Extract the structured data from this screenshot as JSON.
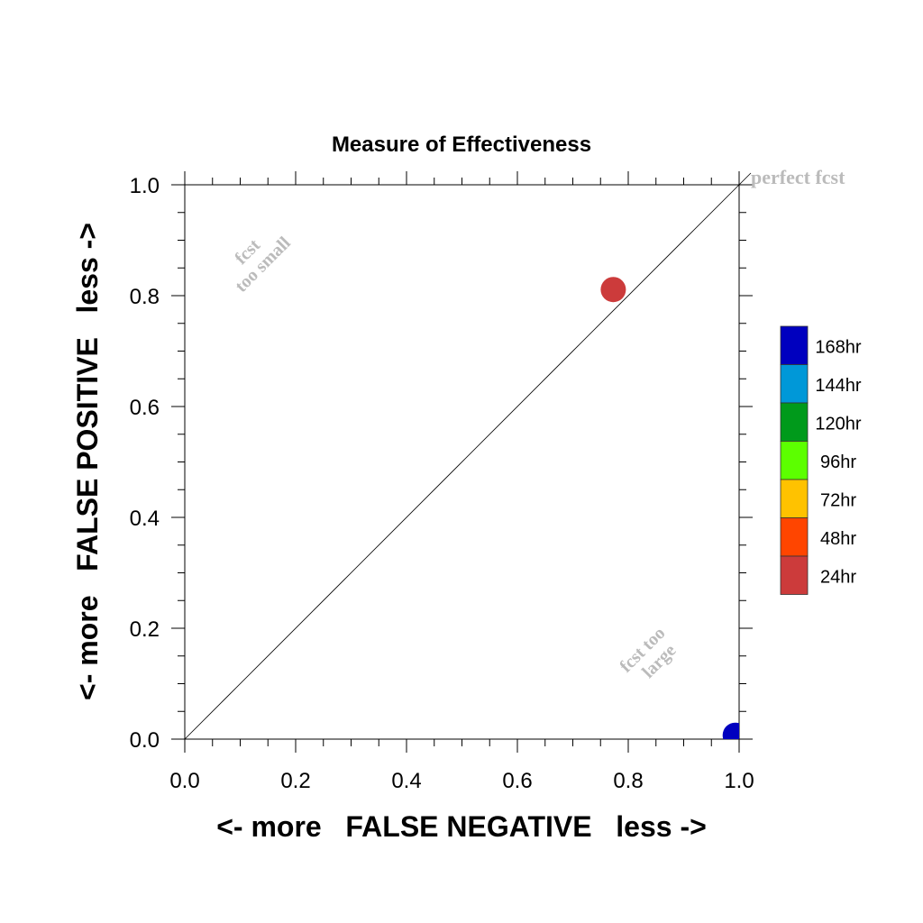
{
  "chart_data": {
    "type": "scatter",
    "title": "Measure of Effectiveness",
    "xlabel": "<- more   FALSE NEGATIVE   less ->",
    "ylabel": "<- more   FALSE POSITIVE   less ->",
    "xlim": [
      0.0,
      1.0
    ],
    "ylim": [
      0.0,
      1.0
    ],
    "x_ticks": [
      "0.0",
      "0.2",
      "0.4",
      "0.6",
      "0.8",
      "1.0"
    ],
    "y_ticks": [
      "0.0",
      "0.2",
      "0.4",
      "0.6",
      "0.8",
      "1.0"
    ],
    "grid": false,
    "diagonal_line": true,
    "annotations": {
      "perfect": "perfect fcst",
      "too_small_line1": "fcst",
      "too_small_line2": "too small",
      "too_large_line1": "fcst too",
      "too_large_line2": "large"
    },
    "legend": [
      {
        "label": "168hr",
        "color": "#0000bf"
      },
      {
        "label": "144hr",
        "color": "#0098d8"
      },
      {
        "label": "120hr",
        "color": "#009a1b"
      },
      {
        "label": "96hr",
        "color": "#5cff00"
      },
      {
        "label": "72hr",
        "color": "#ffc200"
      },
      {
        "label": "48hr",
        "color": "#ff4500"
      },
      {
        "label": "24hr",
        "color": "#cc3b3b"
      }
    ],
    "series": [
      {
        "name": "24hr",
        "color": "#cc3b3b",
        "points": [
          {
            "x": 0.773,
            "y": 0.811
          }
        ]
      },
      {
        "name": "168hr",
        "color": "#0000bf",
        "points": [
          {
            "x": 0.993,
            "y": 0.007
          }
        ]
      }
    ]
  }
}
